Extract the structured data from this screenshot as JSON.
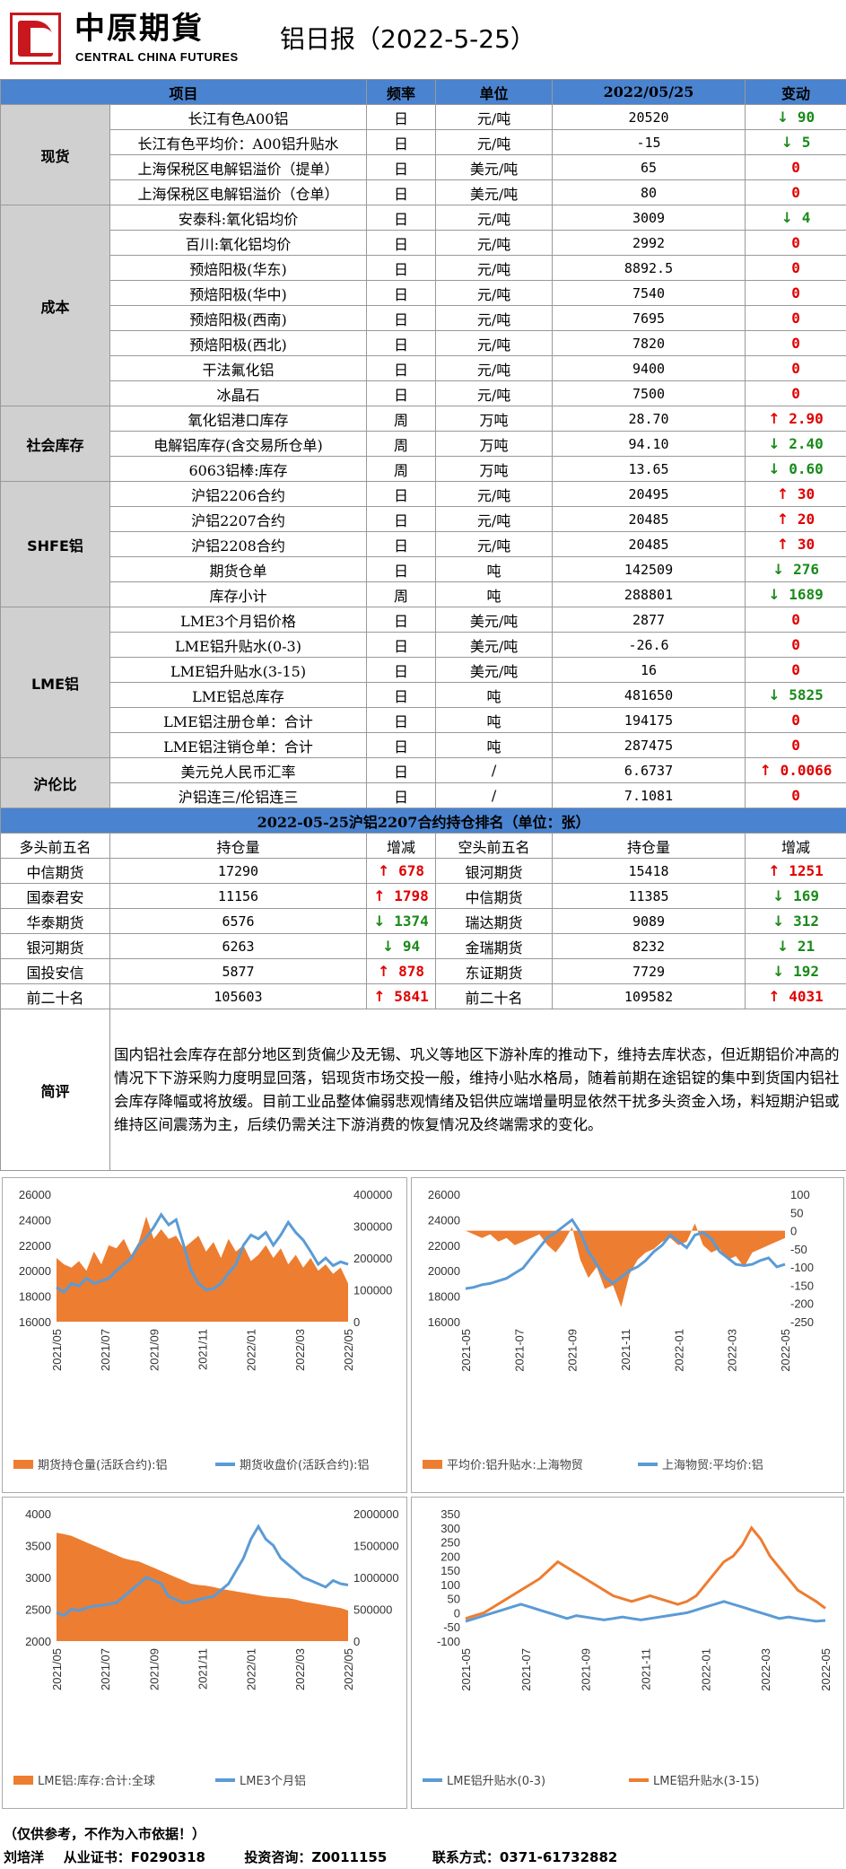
{
  "header": {
    "logo_cn": "中原期貨",
    "logo_en": "CENTRAL CHINA FUTURES",
    "title": "铝日报（2022-5-25）"
  },
  "table_header": {
    "item": "项目",
    "freq": "频率",
    "unit": "单位",
    "date": "2022/05/25",
    "change": "变动"
  },
  "groups": [
    {
      "category": "现货",
      "rows": [
        {
          "name": "长江有色A00铝",
          "freq": "日",
          "unit": "元/吨",
          "value": "20520",
          "change": "90",
          "dir": "down"
        },
        {
          "name": "长江有色平均价：A00铝升贴水",
          "freq": "日",
          "unit": "元/吨",
          "value": "-15",
          "change": "5",
          "dir": "down"
        },
        {
          "name": "上海保税区电解铝溢价（提单）",
          "freq": "日",
          "unit": "美元/吨",
          "value": "65",
          "change": "0",
          "dir": "zero"
        },
        {
          "name": "上海保税区电解铝溢价（仓单）",
          "freq": "日",
          "unit": "美元/吨",
          "value": "80",
          "change": "0",
          "dir": "zero"
        }
      ]
    },
    {
      "category": "成本",
      "rows": [
        {
          "name": "安泰科:氧化铝均价",
          "freq": "日",
          "unit": "元/吨",
          "value": "3009",
          "change": "4",
          "dir": "down"
        },
        {
          "name": "百川:氧化铝均价",
          "freq": "日",
          "unit": "元/吨",
          "value": "2992",
          "change": "0",
          "dir": "zero"
        },
        {
          "name": "预焙阳极(华东)",
          "freq": "日",
          "unit": "元/吨",
          "value": "8892.5",
          "change": "0",
          "dir": "zero"
        },
        {
          "name": "预焙阳极(华中)",
          "freq": "日",
          "unit": "元/吨",
          "value": "7540",
          "change": "0",
          "dir": "zero"
        },
        {
          "name": "预焙阳极(西南)",
          "freq": "日",
          "unit": "元/吨",
          "value": "7695",
          "change": "0",
          "dir": "zero"
        },
        {
          "name": "预焙阳极(西北)",
          "freq": "日",
          "unit": "元/吨",
          "value": "7820",
          "change": "0",
          "dir": "zero"
        },
        {
          "name": "干法氟化铝",
          "freq": "日",
          "unit": "元/吨",
          "value": "9400",
          "change": "0",
          "dir": "zero"
        },
        {
          "name": "冰晶石",
          "freq": "日",
          "unit": "元/吨",
          "value": "7500",
          "change": "0",
          "dir": "zero"
        }
      ]
    },
    {
      "category": "社会库存",
      "rows": [
        {
          "name": "氧化铝港口库存",
          "freq": "周",
          "unit": "万吨",
          "value": "28.70",
          "change": "2.90",
          "dir": "up"
        },
        {
          "name": "电解铝库存(含交易所仓单)",
          "freq": "周",
          "unit": "万吨",
          "value": "94.10",
          "change": "2.40",
          "dir": "down"
        },
        {
          "name": "6063铝棒:库存",
          "freq": "周",
          "unit": "万吨",
          "value": "13.65",
          "change": "0.60",
          "dir": "down"
        }
      ]
    },
    {
      "category": "SHFE铝",
      "rows": [
        {
          "name": "沪铝2206合约",
          "freq": "日",
          "unit": "元/吨",
          "value": "20495",
          "change": "30",
          "dir": "up"
        },
        {
          "name": "沪铝2207合约",
          "freq": "日",
          "unit": "元/吨",
          "value": "20485",
          "change": "20",
          "dir": "up"
        },
        {
          "name": "沪铝2208合约",
          "freq": "日",
          "unit": "元/吨",
          "value": "20485",
          "change": "30",
          "dir": "up"
        },
        {
          "name": "期货仓单",
          "freq": "日",
          "unit": "吨",
          "value": "142509",
          "change": "276",
          "dir": "down"
        },
        {
          "name": "库存小计",
          "freq": "周",
          "unit": "吨",
          "value": "288801",
          "change": "1689",
          "dir": "down"
        }
      ]
    },
    {
      "category": "LME铝",
      "rows": [
        {
          "name": "LME3个月铝价格",
          "freq": "日",
          "unit": "美元/吨",
          "value": "2877",
          "change": "0",
          "dir": "zero"
        },
        {
          "name": "LME铝升贴水(0-3)",
          "freq": "日",
          "unit": "美元/吨",
          "value": "-26.6",
          "change": "0",
          "dir": "zero"
        },
        {
          "name": "LME铝升贴水(3-15)",
          "freq": "日",
          "unit": "美元/吨",
          "value": "16",
          "change": "0",
          "dir": "zero"
        },
        {
          "name": "LME铝总库存",
          "freq": "日",
          "unit": "吨",
          "value": "481650",
          "change": "5825",
          "dir": "down"
        },
        {
          "name": "LME铝注册仓单：合计",
          "freq": "日",
          "unit": "吨",
          "value": "194175",
          "change": "0",
          "dir": "zero"
        },
        {
          "name": "LME铝注销仓单：合计",
          "freq": "日",
          "unit": "吨",
          "value": "287475",
          "change": "0",
          "dir": "zero"
        }
      ]
    },
    {
      "category": "沪伦比",
      "rows": [
        {
          "name": "美元兑人民币汇率",
          "freq": "日",
          "unit": "/",
          "value": "6.6737",
          "change": "0.0066",
          "dir": "up"
        },
        {
          "name": "沪铝连三/伦铝连三",
          "freq": "日",
          "unit": "/",
          "value": "7.1081",
          "change": "0",
          "dir": "zero"
        }
      ]
    }
  ],
  "ranking": {
    "title": "2022-05-25沪铝2207合约持仓排名（单位：张）",
    "headers": [
      "多头前五名",
      "持仓量",
      "增减",
      "空头前五名",
      "持仓量",
      "增减"
    ],
    "rows": [
      {
        "long": "中信期货",
        "long_pos": "17290",
        "long_chg": "678",
        "long_dir": "up",
        "short": "银河期货",
        "short_pos": "15418",
        "short_chg": "1251",
        "short_dir": "up"
      },
      {
        "long": "国泰君安",
        "long_pos": "11156",
        "long_chg": "1798",
        "long_dir": "up",
        "short": "中信期货",
        "short_pos": "11385",
        "short_chg": "169",
        "short_dir": "down"
      },
      {
        "long": "华泰期货",
        "long_pos": "6576",
        "long_chg": "1374",
        "long_dir": "down",
        "short": "瑞达期货",
        "short_pos": "9089",
        "short_chg": "312",
        "short_dir": "down"
      },
      {
        "long": "银河期货",
        "long_pos": "6263",
        "long_chg": "94",
        "long_dir": "down",
        "short": "金瑞期货",
        "short_pos": "8232",
        "short_chg": "21",
        "short_dir": "down"
      },
      {
        "long": "国投安信",
        "long_pos": "5877",
        "long_chg": "878",
        "long_dir": "up",
        "short": "东证期货",
        "short_pos": "7729",
        "short_chg": "192",
        "short_dir": "down"
      },
      {
        "long": "前二十名",
        "long_pos": "105603",
        "long_chg": "5841",
        "long_dir": "up",
        "short": "前二十名",
        "short_pos": "109582",
        "short_chg": "4031",
        "short_dir": "up"
      }
    ]
  },
  "comment": {
    "label": "简评",
    "text": "国内铝社会库存在部分地区到货偏少及无锡、巩义等地区下游补库的推动下，维持去库状态，但近期铝价冲高的情况下下游采购力度明显回落，铝现货市场交投一般，维持小贴水格局，随着前期在途铝锭的集中到货国内铝社会库存降幅或将放缓。目前工业品整体偏弱悲观情绪及铝供应端增量明显依然干扰多头资金入场，料短期沪铝或维持区间震荡为主，后续仍需关注下游消费的恢复情况及终端需求的变化。"
  },
  "chart_data": [
    {
      "type": "area",
      "x_ticks": [
        "2021/05",
        "2021/07",
        "2021/09",
        "2021/11",
        "2022/01",
        "2022/03",
        "2022/05"
      ],
      "y_left": {
        "min": 16000,
        "max": 26000,
        "ticks": [
          16000,
          18000,
          20000,
          22000,
          24000,
          26000
        ]
      },
      "y_right": {
        "min": 0,
        "max": 400000,
        "ticks": [
          0,
          100000,
          200000,
          300000,
          400000
        ]
      },
      "series": [
        {
          "name": "期货持仓量(活跃合约):铝",
          "kind": "area",
          "axis": "right",
          "color": "#ed7d31",
          "values": [
            200000,
            180000,
            170000,
            190000,
            160000,
            220000,
            180000,
            240000,
            230000,
            260000,
            210000,
            250000,
            330000,
            260000,
            290000,
            260000,
            270000,
            230000,
            250000,
            270000,
            220000,
            250000,
            200000,
            260000,
            220000,
            240000,
            190000,
            210000,
            240000,
            200000,
            230000,
            180000,
            210000,
            170000,
            200000,
            160000,
            180000,
            150000,
            170000,
            120000
          ]
        },
        {
          "name": "期货收盘价(活跃合约):铝",
          "kind": "line",
          "axis": "left",
          "color": "#5b9bd5",
          "values": [
            18700,
            18300,
            19000,
            18800,
            19400,
            19000,
            19200,
            19400,
            20000,
            20500,
            21000,
            22000,
            22600,
            23400,
            24400,
            23600,
            24000,
            22000,
            20000,
            19000,
            18500,
            18600,
            19000,
            19800,
            20500,
            22000,
            22800,
            22500,
            23000,
            22000,
            22800,
            23800,
            23000,
            22400,
            21500,
            20500,
            21000,
            20400,
            20700,
            20500
          ]
        }
      ]
    },
    {
      "type": "area",
      "x_ticks": [
        "2021-05",
        "2021-07",
        "2021-09",
        "2021-11",
        "2022-01",
        "2022-03",
        "2022-05"
      ],
      "y_left": {
        "min": 16000,
        "max": 26000,
        "ticks": [
          16000,
          18000,
          20000,
          22000,
          24000,
          26000
        ]
      },
      "y_right": {
        "min": -250,
        "max": 100,
        "ticks": [
          -250,
          -200,
          -150,
          -100,
          -50,
          0,
          50,
          100
        ]
      },
      "series": [
        {
          "name": "平均价:铝升贴水:上海物贸",
          "kind": "area",
          "axis": "right",
          "color": "#ed7d31",
          "values": [
            0,
            -10,
            -20,
            -10,
            -30,
            -20,
            -40,
            -30,
            -20,
            -10,
            -40,
            -60,
            -30,
            10,
            -80,
            -130,
            -100,
            -160,
            -150,
            -210,
            -120,
            -80,
            -60,
            -50,
            -30,
            -20,
            -40,
            -30,
            20,
            -40,
            -60,
            -50,
            -80,
            -70,
            -100,
            -60,
            -50,
            -40,
            -30,
            -20
          ]
        },
        {
          "name": "上海物贸:平均价:铝",
          "kind": "line",
          "axis": "left",
          "color": "#5b9bd5",
          "values": [
            18600,
            18700,
            18900,
            19000,
            19200,
            19400,
            19800,
            20200,
            21000,
            21800,
            22600,
            23000,
            23500,
            24000,
            23000,
            21500,
            20500,
            19500,
            19000,
            19500,
            20000,
            20300,
            20800,
            21500,
            22000,
            22800,
            22300,
            21800,
            22800,
            23000,
            22500,
            21500,
            21000,
            20500,
            20400,
            20500,
            20800,
            21000,
            20300,
            20500
          ]
        }
      ]
    },
    {
      "type": "area",
      "x_ticks": [
        "2021/05",
        "2021/07",
        "2021/09",
        "2021/11",
        "2022/01",
        "2022/03",
        "2022/05"
      ],
      "y_left": {
        "min": 2000,
        "max": 4000,
        "ticks": [
          2000,
          2500,
          3000,
          3500,
          4000
        ]
      },
      "y_right": {
        "min": 0,
        "max": 2000000,
        "ticks": [
          0,
          500000,
          1000000,
          1500000,
          2000000
        ]
      },
      "series": [
        {
          "name": "LME铝:库存:合计:全球",
          "kind": "area",
          "axis": "right",
          "color": "#ed7d31",
          "values": [
            1700000,
            1680000,
            1650000,
            1600000,
            1550000,
            1500000,
            1450000,
            1400000,
            1350000,
            1300000,
            1270000,
            1250000,
            1200000,
            1150000,
            1100000,
            1050000,
            1000000,
            950000,
            900000,
            880000,
            870000,
            850000,
            820000,
            800000,
            780000,
            760000,
            740000,
            720000,
            700000,
            690000,
            680000,
            670000,
            650000,
            620000,
            600000,
            580000,
            560000,
            540000,
            520000,
            480000
          ]
        },
        {
          "name": "LME3个月铝",
          "kind": "line",
          "axis": "left",
          "color": "#5b9bd5",
          "values": [
            2450,
            2400,
            2500,
            2480,
            2520,
            2550,
            2560,
            2580,
            2600,
            2700,
            2800,
            2900,
            3000,
            2950,
            2900,
            2700,
            2650,
            2600,
            2620,
            2650,
            2680,
            2700,
            2800,
            2900,
            3100,
            3300,
            3600,
            3800,
            3600,
            3500,
            3300,
            3200,
            3100,
            3000,
            2950,
            2900,
            2850,
            2950,
            2900,
            2880
          ]
        }
      ]
    },
    {
      "type": "line",
      "x_ticks": [
        "2021-05",
        "2021-07",
        "2021-09",
        "2021-11",
        "2022-01",
        "2022-03",
        "2022-05"
      ],
      "y_left": {
        "min": -100,
        "max": 350,
        "ticks": [
          -100,
          -50,
          0,
          50,
          100,
          150,
          200,
          250,
          300,
          350
        ]
      },
      "series": [
        {
          "name": "LME铝升贴水(0-3)",
          "kind": "line",
          "axis": "left",
          "color": "#5b9bd5",
          "values": [
            -30,
            -20,
            -10,
            0,
            10,
            20,
            30,
            20,
            10,
            0,
            -10,
            -20,
            -10,
            -15,
            -20,
            -25,
            -20,
            -15,
            -20,
            -25,
            -20,
            -15,
            -10,
            -5,
            0,
            10,
            20,
            30,
            40,
            30,
            20,
            10,
            0,
            -10,
            -20,
            -15,
            -20,
            -25,
            -30,
            -27
          ]
        },
        {
          "name": "LME铝升贴水(3-15)",
          "kind": "line",
          "axis": "left",
          "color": "#ed7d31",
          "values": [
            -20,
            -10,
            0,
            20,
            40,
            60,
            80,
            100,
            120,
            150,
            180,
            160,
            140,
            120,
            100,
            80,
            60,
            50,
            40,
            50,
            60,
            50,
            40,
            30,
            40,
            60,
            100,
            140,
            180,
            200,
            240,
            300,
            260,
            200,
            160,
            120,
            80,
            60,
            40,
            16
          ]
        }
      ]
    }
  ],
  "footer": {
    "disclaimer": "（仅供参考，不作为入市依据！）",
    "author": "刘培洋",
    "cert_label": "从业证书：F0290318",
    "advisor_label": "投资咨询：Z0011155",
    "contact_label": "联系方式：0371-61732882"
  },
  "colors": {
    "header_blue": "#4a83cf",
    "category_gray": "#d0d0d0",
    "up_red": "#e00000",
    "down_green": "#1a8a1a",
    "series_orange": "#ed7d31",
    "series_blue": "#5b9bd5"
  }
}
